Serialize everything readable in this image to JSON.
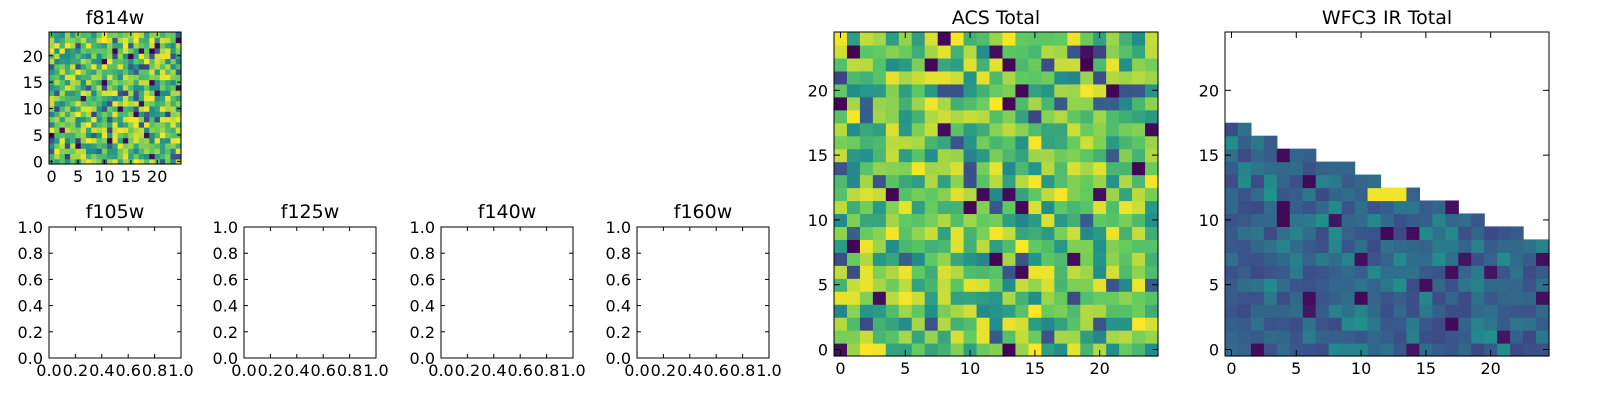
{
  "chart_data": [
    {
      "type": "heatmap",
      "title": "f814w",
      "grid_size": 25,
      "x_ticks": [
        0,
        5,
        10,
        15,
        20
      ],
      "y_ticks": [
        0,
        5,
        10,
        15,
        20
      ],
      "colormap": "viridis",
      "missing": "none"
    },
    {
      "type": "heatmap",
      "title": "f105w",
      "empty": true,
      "x_ticks": [
        "0.0",
        "0.2",
        "0.4",
        "0.6",
        "0.8",
        "1.0"
      ],
      "y_ticks": [
        "0.0",
        "0.2",
        "0.4",
        "0.6",
        "0.8",
        "1.0"
      ]
    },
    {
      "type": "heatmap",
      "title": "f125w",
      "empty": true,
      "x_ticks": [
        "0.0",
        "0.2",
        "0.4",
        "0.6",
        "0.8",
        "1.0"
      ],
      "y_ticks": [
        "0.0",
        "0.2",
        "0.4",
        "0.6",
        "0.8",
        "1.0"
      ]
    },
    {
      "type": "heatmap",
      "title": "f140w",
      "empty": true,
      "x_ticks": [
        "0.0",
        "0.2",
        "0.4",
        "0.6",
        "0.8",
        "1.0"
      ],
      "y_ticks": [
        "0.0",
        "0.2",
        "0.4",
        "0.6",
        "0.8",
        "1.0"
      ]
    },
    {
      "type": "heatmap",
      "title": "f160w",
      "empty": true,
      "x_ticks": [
        "0.0",
        "0.2",
        "0.4",
        "0.6",
        "0.8",
        "1.0"
      ],
      "y_ticks": [
        "0.0",
        "0.2",
        "0.4",
        "0.6",
        "0.8",
        "1.0"
      ]
    },
    {
      "type": "heatmap",
      "title": "ACS Total",
      "grid_size": 25,
      "x_ticks": [
        0,
        5,
        10,
        15,
        20
      ],
      "y_ticks": [
        0,
        5,
        10,
        15,
        20
      ],
      "colormap": "viridis",
      "missing": "none"
    },
    {
      "type": "heatmap",
      "title": "WFC3 IR Total",
      "grid_size": 25,
      "x_ticks": [
        0,
        5,
        10,
        15,
        20
      ],
      "y_ticks": [
        0,
        5,
        10,
        15,
        20
      ],
      "colormap": "viridis",
      "missing": "upper-right triangle (white)"
    }
  ],
  "colors": {
    "viridis": [
      "#440154",
      "#3b528b",
      "#21918c",
      "#5ec962",
      "#fde725"
    ]
  }
}
